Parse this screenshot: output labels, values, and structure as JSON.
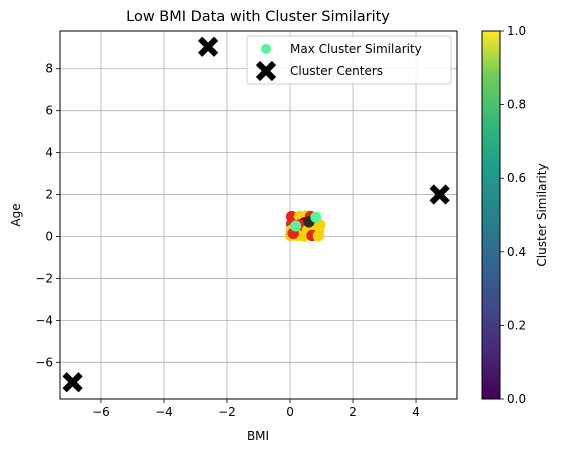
{
  "chart_data": {
    "type": "scatter",
    "title": "Low BMI Data with Cluster Similarity",
    "xlabel": "BMI",
    "ylabel": "Age",
    "xlim": [
      -7.3,
      5.3
    ],
    "ylim": [
      -7.75,
      9.8
    ],
    "xticks": [
      -6,
      -4,
      -2,
      0,
      2,
      4
    ],
    "yticks": [
      -6,
      -4,
      -2,
      0,
      2,
      4,
      6,
      8
    ],
    "grid": true,
    "legend": {
      "placement": "top-right",
      "entries": [
        {
          "label": "Max Cluster Similarity",
          "marker": "circle",
          "color": "#55f59a"
        },
        {
          "label": "Cluster Centers",
          "marker": "x",
          "color": "#000000"
        }
      ]
    },
    "colorbar": {
      "label": "Cluster Similarity",
      "colormap": "viridis",
      "range": [
        0.0,
        1.0
      ],
      "ticks": [
        0.0,
        0.2,
        0.4,
        0.6,
        0.8,
        1.0
      ]
    },
    "series": [
      {
        "name": "Max Cluster Similarity",
        "points": [
          {
            "x": 0.82,
            "y": 0.92,
            "color": "#55f59a"
          },
          {
            "x": 0.18,
            "y": 0.5,
            "color": "#55f59a"
          }
        ]
      },
      {
        "name": "Cluster Centers",
        "points": [
          {
            "x": -2.6,
            "y": 9.05
          },
          {
            "x": 4.75,
            "y": 2.0
          },
          {
            "x": -6.9,
            "y": -6.95
          }
        ]
      },
      {
        "points": [
          {
            "x": 0.05,
            "y": 0.95,
            "color": "#e8231a"
          },
          {
            "x": 0.3,
            "y": 0.95,
            "color": "#f5d20a"
          },
          {
            "x": 0.5,
            "y": 0.97,
            "color": "#f5d20a"
          },
          {
            "x": 0.65,
            "y": 0.95,
            "color": "#e8231a"
          },
          {
            "x": 0.8,
            "y": 0.8,
            "color": "#e8231a"
          },
          {
            "x": 0.95,
            "y": 0.55,
            "color": "#f5d20a"
          },
          {
            "x": 0.05,
            "y": 0.6,
            "color": "#e8231a"
          },
          {
            "x": 0.45,
            "y": 0.65,
            "color": "#8b0000"
          },
          {
            "x": 0.3,
            "y": 0.55,
            "color": "#e8231a"
          },
          {
            "x": 0.7,
            "y": 0.55,
            "color": "#f5d20a"
          },
          {
            "x": 0.05,
            "y": 0.3,
            "color": "#f5d20a"
          },
          {
            "x": 0.3,
            "y": 0.3,
            "color": "#e8231a"
          },
          {
            "x": 0.55,
            "y": 0.3,
            "color": "#f5d20a"
          },
          {
            "x": 0.9,
            "y": 0.25,
            "color": "#f5d20a"
          },
          {
            "x": 0.02,
            "y": 0.05,
            "color": "#f5d20a"
          },
          {
            "x": 0.25,
            "y": 0.05,
            "color": "#f5d20a"
          },
          {
            "x": 0.45,
            "y": 0.02,
            "color": "#f5d20a"
          },
          {
            "x": 0.7,
            "y": 0.05,
            "color": "#e8231a"
          },
          {
            "x": 0.9,
            "y": 0.03,
            "color": "#f5d20a"
          },
          {
            "x": 0.1,
            "y": 0.15,
            "color": "#e8231a"
          },
          {
            "x": 0.6,
            "y": 0.7,
            "color": "#2a2a2a"
          }
        ]
      }
    ]
  }
}
